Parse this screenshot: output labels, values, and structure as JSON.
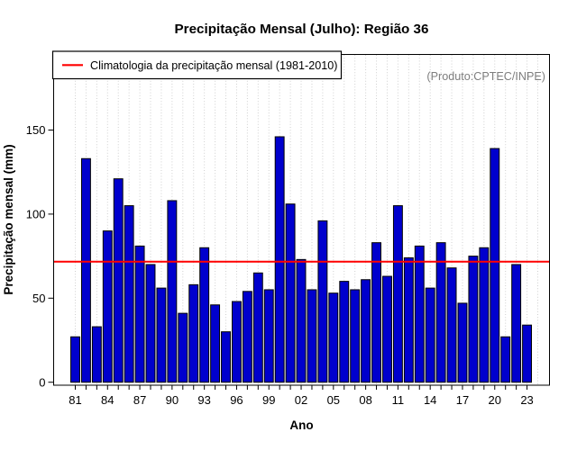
{
  "title": "Precipitação Mensal (Julho): Região 36",
  "annotation": "(Produto:CPTEC/INPE)",
  "legend": {
    "label": "Climatologia da precipitação mensal (1981-2010)",
    "line_color": "#FF0000"
  },
  "axes": {
    "xlabel": "Ano",
    "ylabel": "Precipitação mensal (mm)"
  },
  "colors": {
    "bar_fill": "#0000CD",
    "bar_border": "#000000",
    "reference_line": "#FF0000",
    "grid": "#CFCFCF",
    "annotation_text": "#7E7E7E",
    "frame": "#000000"
  },
  "chart_data": {
    "type": "bar",
    "title": "Precipitação Mensal (Julho): Região 36",
    "xlabel": "Ano",
    "ylabel": "Precipitação mensal (mm)",
    "x": [
      1981,
      1982,
      1983,
      1984,
      1985,
      1986,
      1987,
      1988,
      1989,
      1990,
      1991,
      1992,
      1993,
      1994,
      1995,
      1996,
      1997,
      1998,
      1999,
      2000,
      2001,
      2002,
      2003,
      2004,
      2005,
      2006,
      2007,
      2008,
      2009,
      2010,
      2011,
      2012,
      2013,
      2014,
      2015,
      2016,
      2017,
      2018,
      2019,
      2020,
      2021,
      2022,
      2023
    ],
    "values": [
      27,
      133,
      33,
      90,
      121,
      105,
      81,
      70,
      56,
      108,
      41,
      58,
      80,
      46,
      30,
      48,
      54,
      65,
      55,
      146,
      106,
      73,
      55,
      96,
      53,
      60,
      55,
      61,
      83,
      63,
      105,
      74,
      81,
      56,
      83,
      68,
      47,
      75,
      80,
      139,
      27,
      70,
      34
    ],
    "xtick_labels": [
      "81",
      "84",
      "87",
      "90",
      "93",
      "96",
      "99",
      "02",
      "05",
      "08",
      "11",
      "14",
      "17",
      "20",
      "23"
    ],
    "xtick_every": 3,
    "yticks": [
      0,
      50,
      100,
      150
    ],
    "ylim": [
      0,
      195
    ],
    "climatology_value": 71.7,
    "legend_label": "Climatologia da precipitação mensal (1981-2010)",
    "annotation": "(Produto:CPTEC/INPE)",
    "grid": "vertical-dotted",
    "legend_position": "top-left-inside"
  }
}
